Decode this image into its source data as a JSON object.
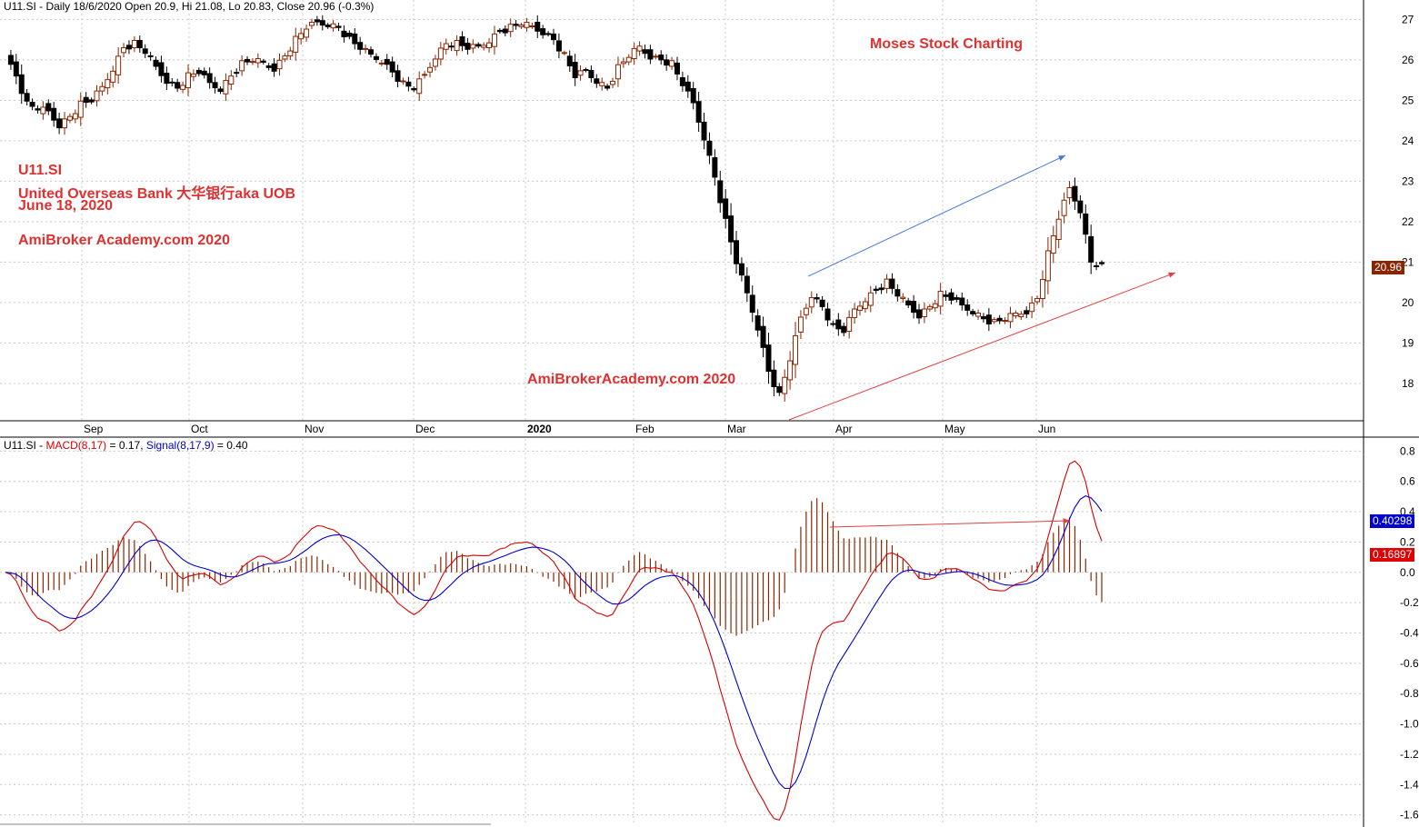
{
  "header": {
    "price": "U11.SI - Daily 18/6/2020 Open 20.9, Hi 21.08, Lo 20.83, Close 20.96 (-0.3%)",
    "macd_prefix": "U11.SI - ",
    "macd_label": "MACD(8,17)",
    "macd_value": " = 0.17, ",
    "signal_label": "Signal(8,17,9)",
    "signal_value": " = 0.40"
  },
  "annotations": {
    "brand": "Moses Stock Charting",
    "ticker": "U11.SI",
    "company": "United Overseas Bank 大华银行aka UOB",
    "date": "June 18, 2020",
    "site_left": "AmiBroker Academy.com  2020",
    "site_center": "AmiBrokerAcademy.com  2020"
  },
  "labels": {
    "last_price": "20.96",
    "signal_last": "0.40298",
    "macd_last": "0.16897"
  },
  "colors": {
    "bull": "#8B2500",
    "bear": "#000000",
    "macd": "#d40000",
    "signal": "#0000d0",
    "hist": "#8B2500",
    "text_red": "#e03030",
    "trend_blue": "#4a78d8",
    "trend_red": "#e04040",
    "grid": "#c8c8c8"
  },
  "chart_data": [
    {
      "type": "candlestick",
      "title": "U11.SI - Daily 18/6/2020",
      "ylim": [
        17.1,
        27.3
      ],
      "y_ticks": [
        18,
        19,
        20,
        21,
        22,
        23,
        24,
        25,
        26,
        27
      ],
      "x_ticks": [
        "Sep",
        "Oct",
        "Nov",
        "Dec",
        "2020",
        "Feb",
        "Mar",
        "Apr",
        "May",
        "Jun"
      ],
      "close_series": [
        26.1,
        25.6,
        24.9,
        24.8,
        24.7,
        24.4,
        24.6,
        24.9,
        25.0,
        25.3,
        25.8,
        26.3,
        26.4,
        26.2,
        25.8,
        25.5,
        25.3,
        25.6,
        25.7,
        25.4,
        25.3,
        25.6,
        25.9,
        26.0,
        25.9,
        25.8,
        26.1,
        26.5,
        26.8,
        26.9,
        26.9,
        26.8,
        26.5,
        26.3,
        26.1,
        26.0,
        25.7,
        25.4,
        25.3,
        25.6,
        26.1,
        26.4,
        26.4,
        26.3,
        26.3,
        26.5,
        26.7,
        26.8,
        26.9,
        26.8,
        26.7,
        26.5,
        26.1,
        25.6,
        25.7,
        25.5,
        25.3,
        25.8,
        26.1,
        26.3,
        26.1,
        26.0,
        25.9,
        25.4,
        24.9,
        24.1,
        23.1,
        22.0,
        21.0,
        20.2,
        19.4,
        18.3,
        17.7,
        18.6,
        19.6,
        20.2,
        19.9,
        19.4,
        19.3,
        19.8,
        20.1,
        20.3,
        20.5,
        20.2,
        19.9,
        19.7,
        19.9,
        20.2,
        20.1,
        19.9,
        19.8,
        19.6,
        19.5,
        19.6,
        19.7,
        19.8,
        20.1,
        21.2,
        22.1,
        22.8,
        22.3,
        21.0,
        20.96
      ],
      "series": [
        {
          "name": "MACD(8,17)",
          "last": 0.17
        },
        {
          "name": "Signal(8,17,9)",
          "last": 0.4
        }
      ]
    },
    {
      "type": "line",
      "title": "U11.SI - MACD(8,17) = 0.17, Signal(8,17,9) = 0.40",
      "ylim": [
        -1.65,
        0.85
      ],
      "y_ticks": [
        "0.8",
        "0.6",
        "0.4",
        "0.2",
        "0.0",
        "-0.2",
        "-0.4",
        "-0.6",
        "-0.8",
        "-1.0",
        "-1.2",
        "-1.4",
        "-1.6"
      ]
    }
  ]
}
